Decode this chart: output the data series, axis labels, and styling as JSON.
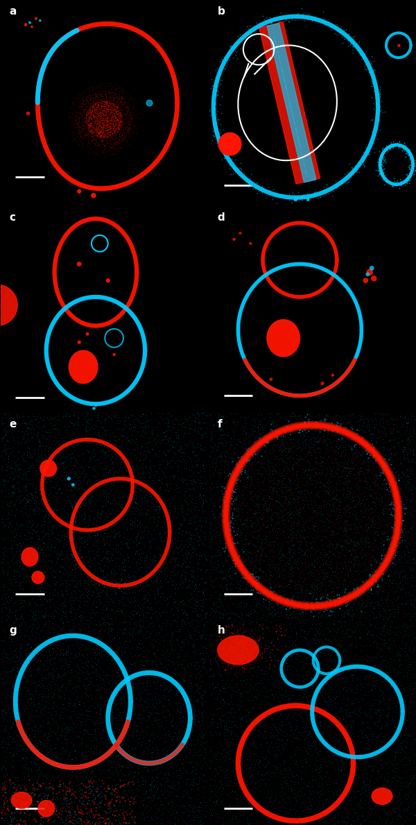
{
  "figsize": [
    6.0,
    11.89
  ],
  "dpi": 100,
  "background": "#000000",
  "nrows": 4,
  "ncols": 2,
  "panels": [
    "a",
    "b",
    "c",
    "d",
    "e",
    "f",
    "g",
    "h"
  ],
  "red": "#ff1500",
  "cyan": "#00ccff",
  "white": "#ffffff"
}
